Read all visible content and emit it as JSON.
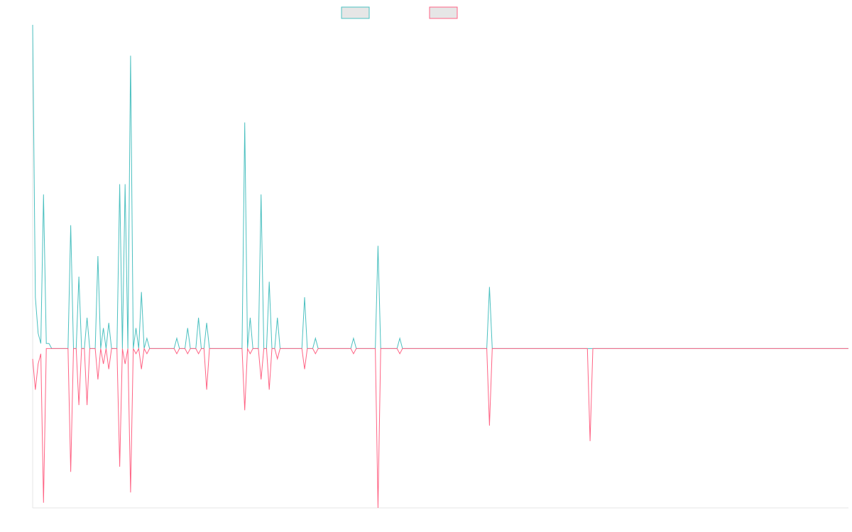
{
  "colors": {
    "series_a": "#4bc0c0",
    "series_b": "#ff6384",
    "swatch_fill": "#e6e6e6",
    "axis": "#e5e5e5"
  },
  "chart_data": {
    "type": "line",
    "title": "",
    "xlabel": "",
    "ylabel": "",
    "grid": false,
    "legend": "top-center",
    "x_range": [
      0,
      300
    ],
    "ylim": [
      -31,
      63
    ],
    "series": [
      {
        "values": [
          63,
          10,
          3,
          1,
          1,
          1,
          1,
          0,
          0,
          0,
          0,
          0,
          0,
          0,
          0,
          0,
          0,
          0,
          0,
          0,
          0,
          0,
          0,
          0,
          1,
          0,
          0,
          0,
          0,
          0,
          0,
          0,
          0,
          0,
          0,
          0,
          0,
          0,
          0,
          0,
          0,
          0,
          0,
          0,
          0,
          0,
          0,
          0,
          0,
          0,
          0,
          0,
          0,
          0,
          0,
          0,
          0,
          0,
          0,
          0,
          0,
          0,
          0,
          0,
          0,
          0,
          0,
          0,
          0,
          0,
          0,
          0,
          0,
          0,
          0,
          0,
          0,
          0,
          0,
          0,
          0,
          0,
          0,
          0,
          0,
          0,
          0,
          0,
          0,
          0,
          0,
          0,
          0,
          0,
          0,
          0,
          0,
          0,
          0,
          0,
          0,
          0,
          0,
          0,
          0,
          0,
          0,
          0,
          0,
          0,
          0,
          0,
          0,
          0,
          0,
          0,
          0,
          0,
          0,
          0,
          0,
          0,
          0,
          0,
          0,
          0,
          0,
          0,
          0,
          0,
          0,
          0,
          0,
          0,
          0,
          0,
          0,
          0,
          0,
          0,
          0,
          0,
          0,
          0,
          0,
          0,
          0,
          0,
          0,
          0,
          0,
          0,
          0,
          0,
          0,
          0,
          0,
          0,
          0,
          0,
          0,
          0,
          0,
          0,
          0,
          0,
          0,
          0,
          0,
          0,
          0,
          0,
          0,
          0,
          0,
          0,
          0,
          0,
          0,
          0,
          0,
          0,
          0,
          0,
          0,
          0,
          0,
          0,
          0,
          0,
          0,
          0,
          0,
          0,
          0,
          0,
          0,
          0,
          0,
          0,
          0,
          0,
          0,
          0,
          0,
          0,
          0,
          0,
          0,
          0,
          0,
          0,
          0,
          0,
          0,
          0,
          0,
          0,
          0,
          0,
          0,
          0,
          0,
          0,
          0,
          0,
          0,
          0,
          0,
          0,
          0,
          0,
          0,
          0,
          0,
          0,
          0,
          0,
          0,
          0,
          0,
          0,
          0,
          0,
          0,
          0,
          0,
          0,
          0,
          0,
          0,
          0,
          0,
          0,
          0,
          0,
          0,
          0,
          0,
          0,
          0,
          0,
          0,
          0,
          0,
          0,
          0,
          0,
          0,
          0,
          0,
          0,
          0,
          0,
          0,
          0,
          0,
          0,
          0,
          0,
          0,
          0,
          0,
          0,
          0,
          0,
          0,
          0,
          0,
          0,
          0,
          0,
          0,
          0,
          0,
          0,
          0,
          0,
          0,
          0,
          0,
          0,
          0,
          0,
          0,
          0,
          0
        ]
      },
      {
        "values": [
          -2,
          -8,
          -3,
          -1,
          0,
          0,
          0,
          0,
          0,
          0,
          0,
          0,
          0,
          0,
          0,
          0,
          0,
          0,
          0,
          0,
          0,
          0,
          0,
          0,
          0,
          0,
          0,
          0,
          0,
          0,
          0,
          0,
          0,
          0,
          0,
          0,
          0,
          0,
          0,
          0,
          0,
          0,
          0,
          0,
          0,
          0,
          0,
          0,
          0,
          0,
          0,
          0,
          0,
          0,
          0,
          0,
          0,
          0,
          0,
          0,
          0,
          0,
          0,
          0,
          0,
          0,
          0,
          0,
          0,
          0,
          0,
          0,
          0,
          0,
          0,
          0,
          0,
          0,
          0,
          0,
          0,
          0,
          0,
          0,
          0,
          0,
          0,
          0,
          0,
          0,
          0,
          0,
          0,
          0,
          0,
          0,
          0,
          0,
          0,
          0,
          0,
          0,
          0,
          0,
          0,
          0,
          0,
          0,
          0,
          0,
          0,
          0,
          0,
          0,
          0,
          0,
          0,
          0,
          0,
          0,
          0,
          0,
          0,
          0,
          0,
          0,
          0,
          0,
          0,
          0,
          0,
          0,
          0,
          0,
          0,
          0,
          0,
          0,
          0,
          0,
          0,
          0,
          0,
          0,
          0,
          0,
          0,
          0,
          0,
          0,
          0,
          0,
          0,
          0,
          0,
          0,
          0,
          0,
          0,
          0,
          0,
          0,
          0,
          0,
          0,
          0,
          0,
          0,
          0,
          0,
          0,
          0,
          0,
          0,
          0,
          0,
          0,
          0,
          0,
          0,
          0,
          0,
          0,
          0,
          0,
          0,
          0,
          0,
          0,
          0,
          0,
          0,
          0,
          0,
          0,
          0,
          0,
          0,
          0,
          0,
          0,
          0,
          0,
          0,
          0,
          0,
          0,
          0,
          0,
          0,
          0,
          0,
          0,
          0,
          0,
          0,
          0,
          0,
          0,
          0,
          0,
          0,
          0,
          0,
          0,
          0,
          0,
          0,
          0,
          0,
          0,
          0,
          0,
          0,
          0,
          0,
          0,
          0,
          0,
          0,
          0,
          0,
          0,
          0,
          0,
          0,
          0,
          0,
          0,
          0,
          0,
          0,
          0,
          0,
          0,
          0,
          0,
          0,
          0,
          0,
          0,
          0,
          0,
          0,
          0,
          0,
          0,
          0,
          0,
          0,
          0,
          0,
          0,
          0,
          0,
          0,
          0,
          0,
          0,
          0,
          0,
          0,
          0,
          0,
          0,
          0,
          0,
          0,
          0,
          0,
          0,
          0,
          0,
          0,
          0,
          0,
          0,
          0,
          0,
          0,
          0
        ]
      }
    ],
    "spikes_a": [
      [
        4,
        30
      ],
      [
        14,
        24
      ],
      [
        17,
        14
      ],
      [
        20,
        6
      ],
      [
        24,
        18
      ],
      [
        26,
        4
      ],
      [
        28,
        5
      ],
      [
        32,
        32
      ],
      [
        34,
        32
      ],
      [
        36,
        57
      ],
      [
        38,
        4
      ],
      [
        40,
        11
      ],
      [
        42,
        2
      ],
      [
        53,
        2
      ],
      [
        57,
        4
      ],
      [
        61,
        6
      ],
      [
        64,
        5
      ],
      [
        78,
        44
      ],
      [
        80,
        6
      ],
      [
        84,
        30
      ],
      [
        87,
        13
      ],
      [
        90,
        6
      ],
      [
        100,
        10
      ],
      [
        104,
        2
      ],
      [
        118,
        2
      ],
      [
        127,
        20
      ],
      [
        135,
        2
      ],
      [
        168,
        12
      ],
      [
        205,
        0
      ]
    ],
    "spikes_b": [
      [
        4,
        -30
      ],
      [
        14,
        -24
      ],
      [
        17,
        -11
      ],
      [
        20,
        -11
      ],
      [
        24,
        -6
      ],
      [
        26,
        -3
      ],
      [
        28,
        -4
      ],
      [
        32,
        -23
      ],
      [
        34,
        -3
      ],
      [
        36,
        -28
      ],
      [
        38,
        -1
      ],
      [
        40,
        -4
      ],
      [
        42,
        -1
      ],
      [
        53,
        -1
      ],
      [
        57,
        -1
      ],
      [
        61,
        -1
      ],
      [
        64,
        -8
      ],
      [
        78,
        -12
      ],
      [
        80,
        -1
      ],
      [
        84,
        -6
      ],
      [
        87,
        -8
      ],
      [
        90,
        -2
      ],
      [
        100,
        -4
      ],
      [
        104,
        -1
      ],
      [
        118,
        -1
      ],
      [
        127,
        -31
      ],
      [
        135,
        -1
      ],
      [
        168,
        -15
      ],
      [
        205,
        -18
      ]
    ]
  }
}
